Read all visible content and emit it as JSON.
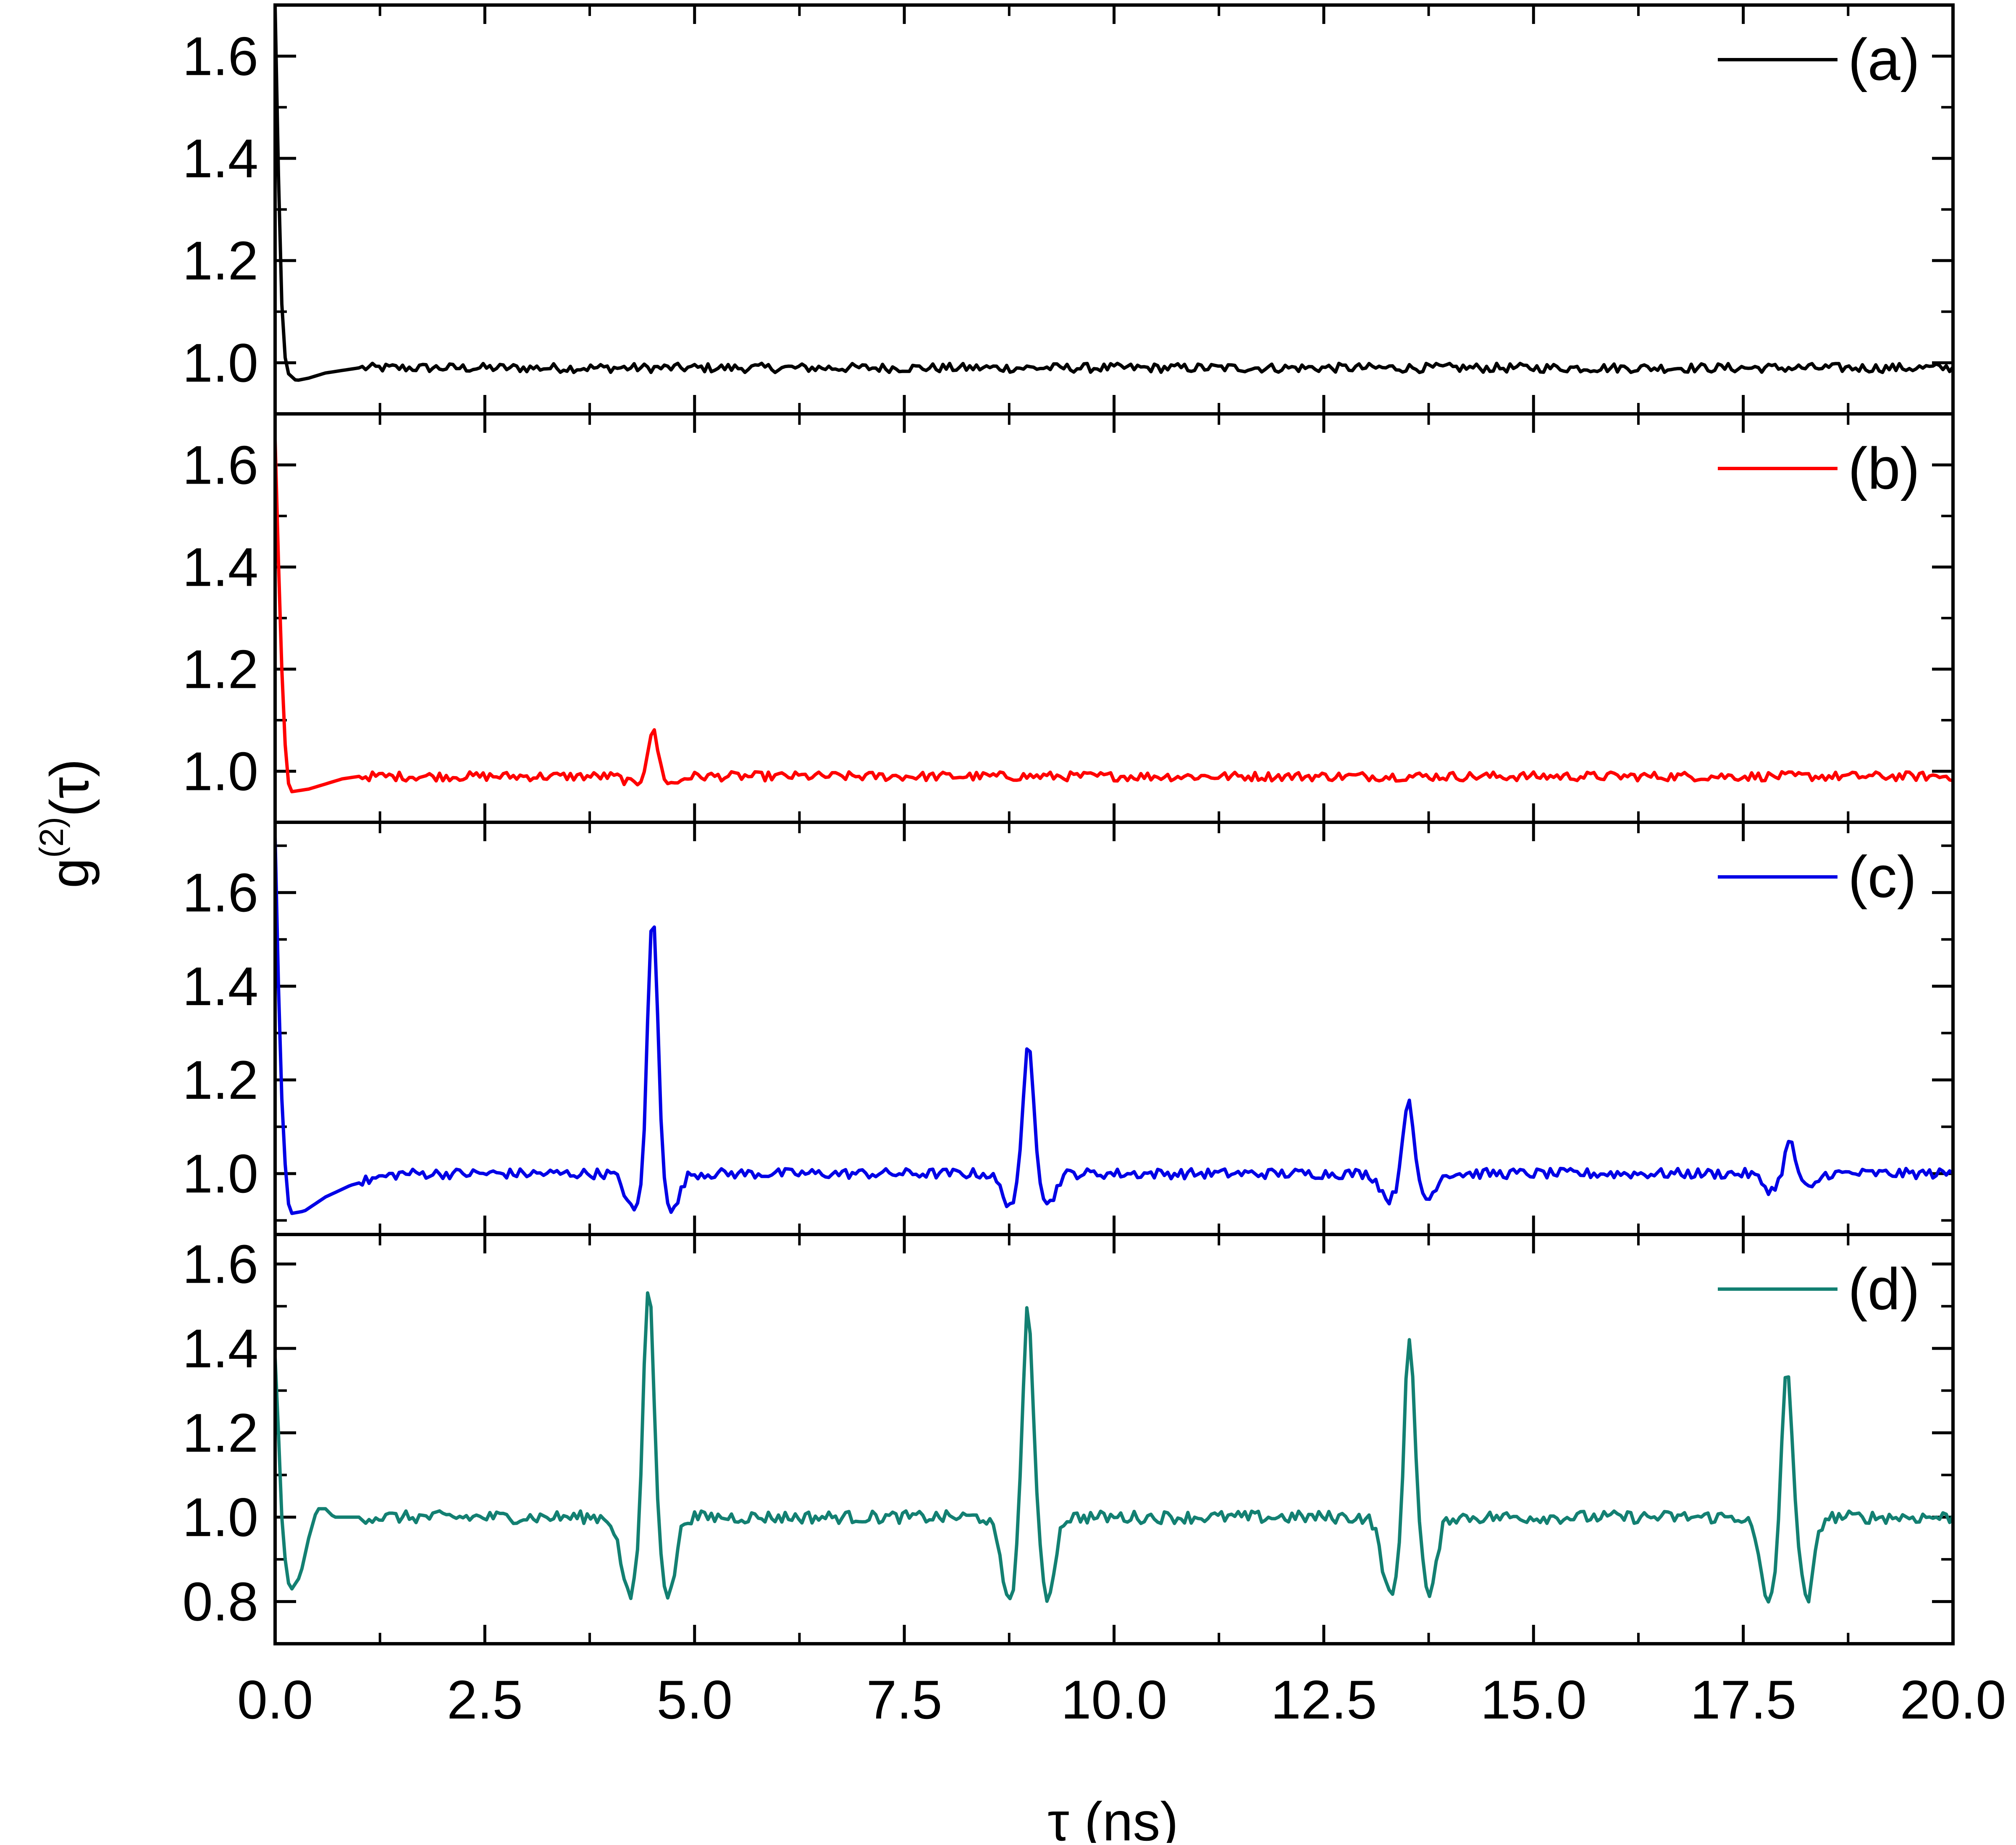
{
  "chart_data": {
    "type": "line",
    "xlabel": "τ (ns)",
    "ylabel": "g(2)(τ)",
    "ylabel_main": "g",
    "ylabel_sup": "(2)",
    "ylabel_arg": "(τ)",
    "xlim": [
      0,
      20
    ],
    "xticks": [
      "0.0",
      "2.5",
      "5.0",
      "7.5",
      "10.0",
      "12.5",
      "15.0",
      "17.5",
      "20.0"
    ],
    "grid": false,
    "panels": [
      {
        "legend": "(a)",
        "color": "#000000",
        "ylim": [
          0.9,
          1.7
        ],
        "yticks": [
          "1.0",
          "1.2",
          "1.4",
          "1.6"
        ],
        "base": [
          [
            0,
            1.7
          ],
          [
            0.03,
            1.45
          ],
          [
            0.06,
            1.2
          ],
          [
            0.1,
            1.03
          ],
          [
            0.15,
            0.98
          ],
          [
            0.25,
            0.965
          ],
          [
            0.4,
            0.97
          ],
          [
            0.6,
            0.98
          ],
          [
            0.8,
            0.985
          ],
          [
            1.0,
            0.99
          ]
        ],
        "noise": 0.009,
        "peaks": []
      },
      {
        "legend": "(b)",
        "color": "#ff0000",
        "ylim": [
          0.9,
          1.7
        ],
        "yticks": [
          "1.0",
          "1.2",
          "1.4",
          "1.6"
        ],
        "base": [
          [
            0,
            1.65
          ],
          [
            0.05,
            1.35
          ],
          [
            0.1,
            1.1
          ],
          [
            0.15,
            0.98
          ],
          [
            0.2,
            0.96
          ],
          [
            0.4,
            0.965
          ],
          [
            0.6,
            0.975
          ],
          [
            0.8,
            0.985
          ],
          [
            1.0,
            0.99
          ]
        ],
        "noise": 0.009,
        "peaks": [
          {
            "x": 4.5,
            "height": 1.09,
            "depth": 0.985
          }
        ]
      },
      {
        "legend": "(c)",
        "color": "#0000e6",
        "ylim": [
          0.87,
          1.75
        ],
        "yticks": [
          "1.0",
          "1.2",
          "1.4",
          "1.6"
        ],
        "base": [
          [
            0,
            1.72
          ],
          [
            0.04,
            1.4
          ],
          [
            0.09,
            1.1
          ],
          [
            0.15,
            0.94
          ],
          [
            0.2,
            0.915
          ],
          [
            0.35,
            0.92
          ],
          [
            0.6,
            0.95
          ],
          [
            0.9,
            0.975
          ],
          [
            1.2,
            0.99
          ],
          [
            1.5,
            1.0
          ]
        ],
        "noise": 0.011,
        "peaks": [
          {
            "x": 4.5,
            "height": 1.56,
            "depth": 0.92
          },
          {
            "x": 8.98,
            "height": 1.29,
            "depth": 0.935
          },
          {
            "x": 13.5,
            "height": 1.16,
            "depth": 0.945
          },
          {
            "x": 18.05,
            "height": 1.07,
            "depth": 0.965
          }
        ]
      },
      {
        "legend": "(d)",
        "color": "#138072",
        "ylim": [
          0.7,
          1.67
        ],
        "yticks": [
          "0.8",
          "1.0",
          "1.2",
          "1.4",
          "1.6"
        ],
        "base": [
          [
            0,
            1.38
          ],
          [
            0.04,
            1.2
          ],
          [
            0.08,
            1.0
          ],
          [
            0.14,
            0.85
          ],
          [
            0.2,
            0.83
          ],
          [
            0.3,
            0.86
          ],
          [
            0.4,
            0.95
          ],
          [
            0.5,
            1.02
          ],
          [
            0.6,
            1.02
          ],
          [
            0.7,
            1.0
          ]
        ],
        "noise": 0.015,
        "peaks": [
          {
            "x": 4.45,
            "height": 1.57,
            "depth": 0.81
          },
          {
            "x": 8.97,
            "height": 1.52,
            "depth": 0.81
          },
          {
            "x": 13.52,
            "height": 1.44,
            "depth": 0.81
          },
          {
            "x": 18.02,
            "height": 1.37,
            "depth": 0.8
          }
        ]
      }
    ]
  }
}
